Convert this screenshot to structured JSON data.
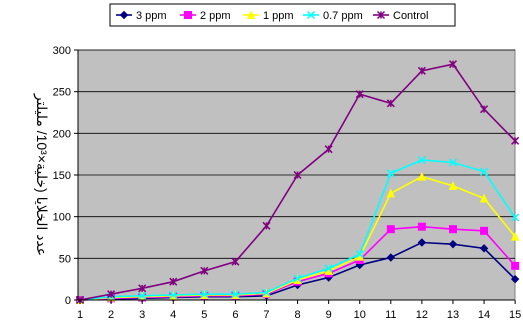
{
  "chart_data": {
    "type": "line",
    "title": "",
    "xlabel": "",
    "ylabel": "عدد الخلايا (خلية×10³/ مليلتر",
    "ylim": [
      0,
      300
    ],
    "yticks": [
      0,
      50,
      100,
      150,
      200,
      250,
      300
    ],
    "x": [
      1,
      2,
      3,
      4,
      5,
      6,
      7,
      8,
      9,
      10,
      11,
      12,
      13,
      14,
      15
    ],
    "grid": true,
    "plot_background": "#c0c0c0",
    "legend_position": "top",
    "series": [
      {
        "name": "3 ppm",
        "color": "#000080",
        "marker": "diamond",
        "values": [
          0,
          1,
          2,
          3,
          4,
          4,
          5,
          18,
          27,
          42,
          51,
          69,
          67,
          62,
          25
        ]
      },
      {
        "name": "2 ppm",
        "color": "#ff00ff",
        "marker": "square",
        "values": [
          0,
          2,
          3,
          4,
          5,
          5,
          7,
          22,
          32,
          48,
          85,
          88,
          85,
          83,
          41
        ]
      },
      {
        "name": "1 ppm",
        "color": "#ffff00",
        "marker": "triangle",
        "values": [
          0,
          3,
          4,
          5,
          6,
          6,
          8,
          24,
          35,
          52,
          128,
          148,
          137,
          122,
          76
        ]
      },
      {
        "name": "0.7 ppm",
        "color": "#00ffff",
        "marker": "x",
        "values": [
          0,
          4,
          5,
          6,
          7,
          7,
          9,
          26,
          38,
          55,
          152,
          168,
          165,
          154,
          99
        ]
      },
      {
        "name": "Control",
        "color": "#800080",
        "marker": "star",
        "values": [
          0,
          7,
          14,
          22,
          35,
          46,
          89,
          150,
          181,
          247,
          236,
          275,
          283,
          229,
          191
        ]
      }
    ]
  }
}
